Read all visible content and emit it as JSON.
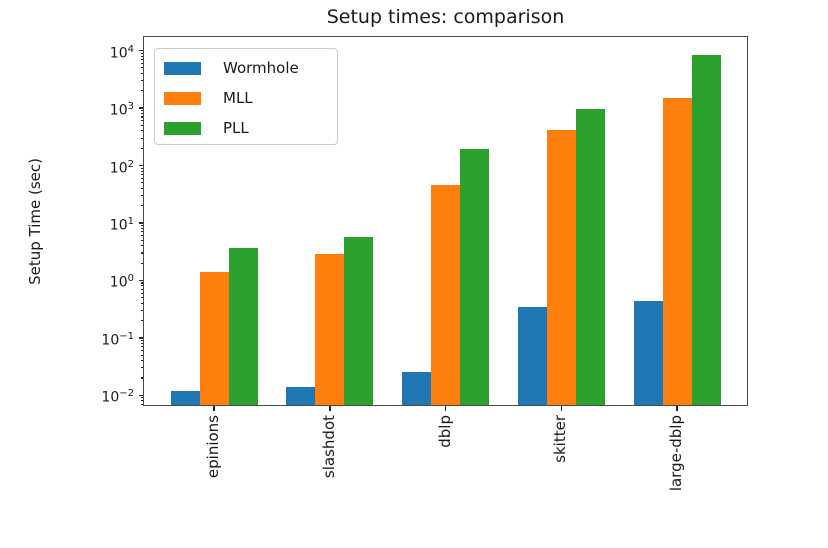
{
  "chart_data": {
    "type": "bar",
    "title": "Setup times: comparison",
    "xlabel": "",
    "ylabel": "Setup Time (sec)",
    "yscale": "log",
    "ylim": [
      0.0065,
      18000
    ],
    "y_tick_exponents": [
      4,
      3,
      2,
      1,
      0,
      -1,
      -2
    ],
    "categories": [
      "epinions",
      "slashdot",
      "dblp",
      "skitter",
      "large-dblp"
    ],
    "series": [
      {
        "name": "Wormhole",
        "color": "#1f77b4",
        "values": [
          0.012,
          0.014,
          0.025,
          0.34,
          0.43
        ]
      },
      {
        "name": "MLL",
        "color": "#ff7f0e",
        "values": [
          1.4,
          2.9,
          45,
          410,
          1500
        ]
      },
      {
        "name": "PLL",
        "color": "#2ca02c",
        "values": [
          3.6,
          5.8,
          195,
          980,
          8500
        ]
      }
    ],
    "legend": {
      "position": "upper left"
    },
    "grid": false,
    "axis_color": "#262626",
    "text_color": "#1a1a1a",
    "background_color": "#ffffff"
  }
}
